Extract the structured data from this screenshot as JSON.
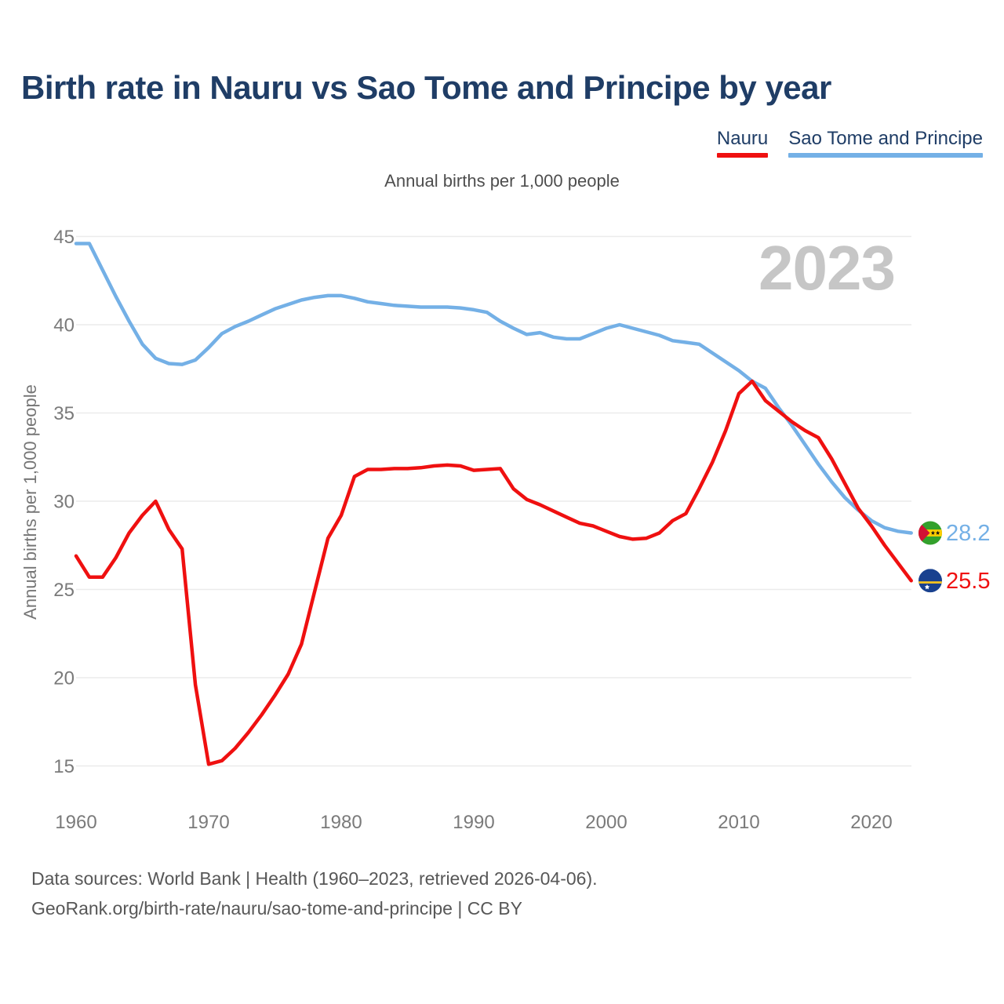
{
  "header": {
    "title": "Birth rate in Nauru vs Sao Tome and Principe by year",
    "subtitle": "Annual births per 1,000 people"
  },
  "legend": [
    {
      "label": "Nauru",
      "color": "#ef1010"
    },
    {
      "label": "Sao Tome and Principe",
      "color": "#74b0e6"
    }
  ],
  "watermark": "2023",
  "chart_data": {
    "type": "line",
    "title": "Birth rate in Nauru vs Sao Tome and Principe by year",
    "subtitle": "Annual births per 1,000 people",
    "xlabel": "",
    "ylabel": "Annual births per 1,000 people",
    "xlim": [
      1960,
      2023
    ],
    "ylim": [
      15,
      45
    ],
    "x_ticks": [
      1960,
      1970,
      1980,
      1990,
      2000,
      2010,
      2020
    ],
    "y_ticks": [
      15,
      20,
      25,
      30,
      35,
      40,
      45
    ],
    "grid": "horizontal",
    "legend_position": "top-right",
    "x": [
      1960,
      1961,
      1962,
      1963,
      1964,
      1965,
      1966,
      1967,
      1968,
      1969,
      1970,
      1971,
      1972,
      1973,
      1974,
      1975,
      1976,
      1977,
      1978,
      1979,
      1980,
      1981,
      1982,
      1983,
      1984,
      1985,
      1986,
      1987,
      1988,
      1989,
      1990,
      1991,
      1992,
      1993,
      1994,
      1995,
      1996,
      1997,
      1998,
      1999,
      2000,
      2001,
      2002,
      2003,
      2004,
      2005,
      2006,
      2007,
      2008,
      2009,
      2010,
      2011,
      2012,
      2013,
      2014,
      2015,
      2016,
      2017,
      2018,
      2019,
      2020,
      2021,
      2022,
      2023
    ],
    "series": [
      {
        "name": "Nauru",
        "color": "#ef1010",
        "flag": "nauru",
        "end_label": "25.5",
        "end_value": 25.5,
        "values": [
          26.9,
          25.7,
          25.7,
          26.8,
          28.2,
          29.2,
          30.0,
          28.4,
          27.3,
          19.6,
          15.1,
          15.3,
          16.0,
          16.9,
          17.9,
          19.0,
          20.2,
          21.9,
          24.9,
          27.9,
          29.2,
          31.4,
          31.8,
          31.8,
          31.85,
          31.85,
          31.9,
          32.0,
          32.05,
          32.0,
          31.75,
          31.8,
          31.85,
          30.7,
          30.1,
          29.8,
          29.45,
          29.1,
          28.75,
          28.6,
          28.3,
          28.0,
          27.85,
          27.9,
          28.2,
          28.9,
          29.3,
          30.7,
          32.2,
          34.0,
          36.1,
          36.8,
          35.7,
          35.1,
          34.5,
          34.0,
          33.6,
          32.4,
          31.0,
          29.6,
          28.6,
          27.5,
          26.5,
          25.5
        ]
      },
      {
        "name": "Sao Tome and Principe",
        "color": "#74b0e6",
        "flag": "sao-tome",
        "end_label": "28.2",
        "end_value": 28.2,
        "values": [
          44.6,
          44.6,
          43.1,
          41.6,
          40.2,
          38.9,
          38.1,
          37.8,
          37.75,
          38.0,
          38.7,
          39.5,
          39.9,
          40.2,
          40.55,
          40.9,
          41.15,
          41.4,
          41.55,
          41.65,
          41.65,
          41.5,
          41.3,
          41.2,
          41.1,
          41.05,
          41.0,
          41.0,
          41.0,
          40.95,
          40.85,
          40.7,
          40.2,
          39.8,
          39.45,
          39.55,
          39.3,
          39.2,
          39.2,
          39.5,
          39.8,
          40.0,
          39.8,
          39.6,
          39.4,
          39.1,
          39.0,
          38.9,
          38.4,
          37.9,
          37.4,
          36.8,
          36.4,
          35.3,
          34.3,
          33.2,
          32.1,
          31.1,
          30.2,
          29.5,
          28.9,
          28.5,
          28.3,
          28.2
        ]
      }
    ]
  },
  "footer": {
    "line1": "Data sources: World Bank | Health (1960–2023, retrieved 2026-04-06).",
    "line2": "GeoRank.org/birth-rate/nauru/sao-tome-and-principe | CC BY"
  },
  "colors": {
    "title_text": "#1f3d66",
    "tick_text": "#7a7a7a",
    "gridline": "#ebebeb",
    "watermark": "#c6c6c6",
    "nauru_line": "#ef1010",
    "sao_tome_line": "#74b0e6"
  }
}
